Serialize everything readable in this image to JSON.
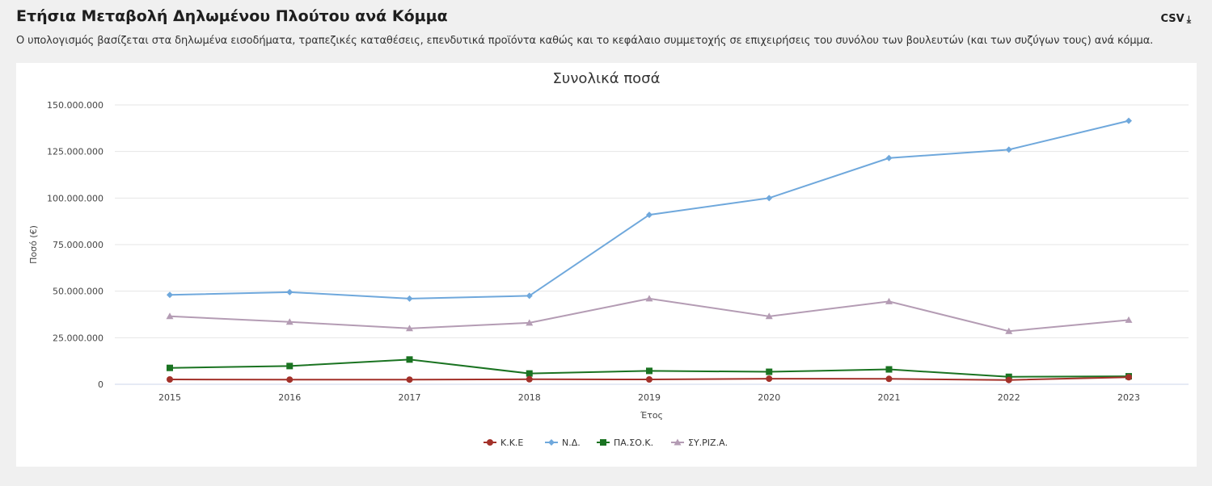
{
  "header": {
    "title": "Ετήσια Μεταβολή Δηλωμένου Πλούτου ανά Κόμμα",
    "subtitle": "Ο υπολογισμός βασίζεται στα δηλωμένα εισοδήματα, τραπεζικές καταθέσεις, επενδυτικά προϊόντα καθώς και το κεφάλαιο συμμετοχής σε επιχειρήσεις του συνόλου των βουλευτών (και των συζύγων τους) ανά κόμμα.",
    "csv_label": "CSV",
    "csv_icon": "download-icon"
  },
  "chart_data": {
    "type": "line",
    "title": "Συνολικά ποσά",
    "xlabel": "Έτος",
    "ylabel": "Ποσό (€)",
    "x": [
      "2015",
      "2016",
      "2017",
      "2018",
      "2019",
      "2020",
      "2021",
      "2022",
      "2023"
    ],
    "ylim": [
      0,
      150000000
    ],
    "yticks": [
      0,
      25000000,
      50000000,
      75000000,
      100000000,
      125000000,
      150000000
    ],
    "ytick_labels": [
      "0",
      "25.000.000",
      "50.000.000",
      "75.000.000",
      "100.000.000",
      "125.000.000",
      "150.000.000"
    ],
    "grid": true,
    "legend_position": "bottom-center",
    "series": [
      {
        "name": "Κ.Κ.Ε",
        "color": "#a3312a",
        "marker": "circle",
        "values": [
          2600000,
          2500000,
          2500000,
          2700000,
          2600000,
          3000000,
          2900000,
          2300000,
          3800000
        ]
      },
      {
        "name": "Ν.Δ.",
        "color": "#6fa8dc",
        "marker": "diamond",
        "values": [
          48000000,
          49500000,
          46000000,
          47500000,
          91000000,
          100000000,
          121500000,
          126000000,
          141500000
        ]
      },
      {
        "name": "ΠΑ.ΣΟ.Κ.",
        "color": "#1a7321",
        "marker": "square",
        "values": [
          8800000,
          9800000,
          13300000,
          5800000,
          7200000,
          6700000,
          8000000,
          4000000,
          4300000
        ]
      },
      {
        "name": "ΣΥ.ΡΙΖ.Α.",
        "color": "#b49cb4",
        "marker": "triangle",
        "values": [
          36500000,
          33500000,
          30000000,
          33000000,
          46000000,
          36500000,
          44500000,
          28500000,
          34500000
        ]
      }
    ]
  }
}
